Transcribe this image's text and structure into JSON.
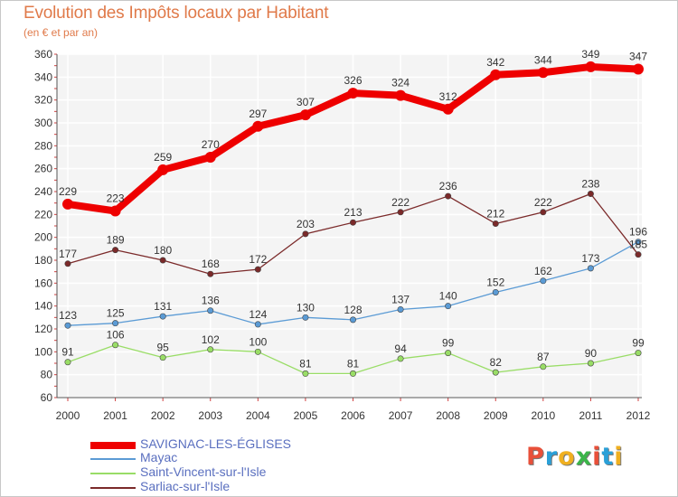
{
  "header": {
    "title": "Evolution des Impôts locaux par Habitant",
    "subtitle": "(en € et par an)"
  },
  "logo": {
    "text": "Proxiti",
    "colors": [
      "#e8503a",
      "#2aa0d8",
      "#f0b020",
      "#3bb54a",
      "#e8503a",
      "#2aa0d8",
      "#f0b020"
    ]
  },
  "legend": {
    "placement": "bottom-left"
  },
  "chart_data": {
    "type": "line",
    "x": [
      "2000",
      "2001",
      "2002",
      "2003",
      "2004",
      "2005",
      "2006",
      "2007",
      "2008",
      "2009",
      "2010",
      "2011",
      "2012"
    ],
    "ylim": [
      60,
      360
    ],
    "yticks": [
      "60",
      "80",
      "100",
      "120",
      "140",
      "160",
      "180",
      "200",
      "220",
      "240",
      "260",
      "280",
      "300",
      "320",
      "340",
      "360"
    ],
    "grid": true,
    "series": [
      {
        "name": "SAVIGNAC-LES-ÉGLISES",
        "values": [
          229,
          223,
          259,
          270,
          297,
          307,
          326,
          324,
          312,
          342,
          344,
          349,
          347
        ],
        "labels": [
          "229",
          "223",
          "259",
          "270",
          "297",
          "307",
          "326",
          "324",
          "312",
          "342",
          "344",
          "349",
          "347"
        ],
        "color": "#ee0000"
      },
      {
        "name": "Mayac",
        "values": [
          123,
          125,
          131,
          136,
          124,
          130,
          128,
          137,
          140,
          152,
          162,
          173,
          196
        ],
        "labels": [
          "123",
          "125",
          "131",
          "136",
          "124",
          "130",
          "128",
          "137",
          "140",
          "152",
          "162",
          "173",
          "196"
        ],
        "color": "#5b9bd5"
      },
      {
        "name": "Saint-Vincent-sur-l'Isle",
        "values": [
          91,
          106,
          95,
          102,
          100,
          81,
          81,
          94,
          99,
          82,
          87,
          90,
          99
        ],
        "labels": [
          "91",
          "106",
          "95",
          "102",
          "100",
          "81",
          "81",
          "94",
          "99",
          "82",
          "87",
          "90",
          "99"
        ],
        "color": "#99dd66"
      },
      {
        "name": "Sarliac-sur-l'Isle",
        "values": [
          177,
          189,
          180,
          168,
          172,
          203,
          213,
          222,
          236,
          212,
          222,
          238,
          185
        ],
        "labels": [
          "177",
          "189",
          "180",
          "168",
          "172",
          "203",
          "213",
          "222",
          "236",
          "212",
          "222",
          "238",
          "185"
        ],
        "color": "#7b2a2a"
      }
    ]
  }
}
